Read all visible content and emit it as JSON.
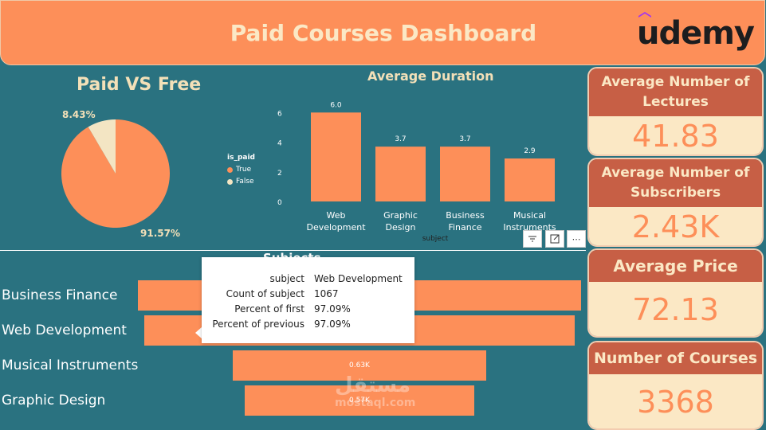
{
  "header": {
    "title": "Paid Courses Dashboard",
    "logo_text": "udemy"
  },
  "pie": {
    "title": "Paid VS Free",
    "legend_title": "is_paid",
    "legend": [
      {
        "label": "True",
        "color": "#fd8f59"
      },
      {
        "label": "False",
        "color": "#f3e5c3"
      }
    ],
    "label_true": "91.57%",
    "label_false": "8.43%"
  },
  "duration": {
    "title": "Average Duration",
    "xlabel": "subject"
  },
  "funnel": {
    "title": "Subjects",
    "rows": [
      {
        "label": "Business Finance",
        "value_label": ""
      },
      {
        "label": "Web Development",
        "value_label": ""
      },
      {
        "label": "Musical Instruments",
        "value_label": "0.63K"
      },
      {
        "label": "Graphic Design",
        "value_label": "0.57K"
      }
    ]
  },
  "tooltip": {
    "rows": [
      {
        "k": "subject",
        "v": "Web Development"
      },
      {
        "k": "Count of subject",
        "v": "1067"
      },
      {
        "k": "Percent of first",
        "v": "97.09%"
      },
      {
        "k": "Percent of previous",
        "v": "97.09%"
      }
    ]
  },
  "cards": {
    "lectures": {
      "title": "Average Number of Lectures",
      "value": "41.83"
    },
    "subscribers": {
      "title": "Average Number of Subscribers",
      "value": "2.43K"
    },
    "price": {
      "title": "Average Price",
      "value": "72.13"
    },
    "courses": {
      "title": "Number of Courses",
      "value": "3368"
    }
  },
  "watermark": {
    "arabic": "مستقل",
    "site": "mostaql.com"
  },
  "colors": {
    "accent": "#fd8f59",
    "background": "#2a7280",
    "card_head": "#c75f45",
    "cream": "#fbe8c5"
  },
  "chart_data": [
    {
      "type": "pie",
      "title": "Paid VS Free",
      "categories": [
        "True",
        "False"
      ],
      "values": [
        91.57,
        8.43
      ]
    },
    {
      "type": "bar",
      "title": "Average Duration",
      "xlabel": "subject",
      "categories": [
        "Web Development",
        "Graphic Design",
        "Business Finance",
        "Musical Instruments"
      ],
      "category_lines": [
        [
          "Web",
          "Development"
        ],
        [
          "Graphic",
          "Design"
        ],
        [
          "Business",
          "Finance"
        ],
        [
          "Musical",
          "Instruments"
        ]
      ],
      "values": [
        6.0,
        3.7,
        3.7,
        2.9
      ],
      "value_labels": [
        "6.0",
        "3.7",
        "3.7",
        "2.9"
      ],
      "yticks": [
        "0",
        "2",
        "4",
        "6"
      ],
      "ylim": [
        0,
        6.5
      ]
    },
    {
      "type": "bar",
      "title": "Subjects",
      "categories": [
        "Business Finance",
        "Web Development",
        "Musical Instruments",
        "Graphic Design"
      ],
      "values": [
        1099,
        1067,
        630,
        570
      ]
    }
  ]
}
